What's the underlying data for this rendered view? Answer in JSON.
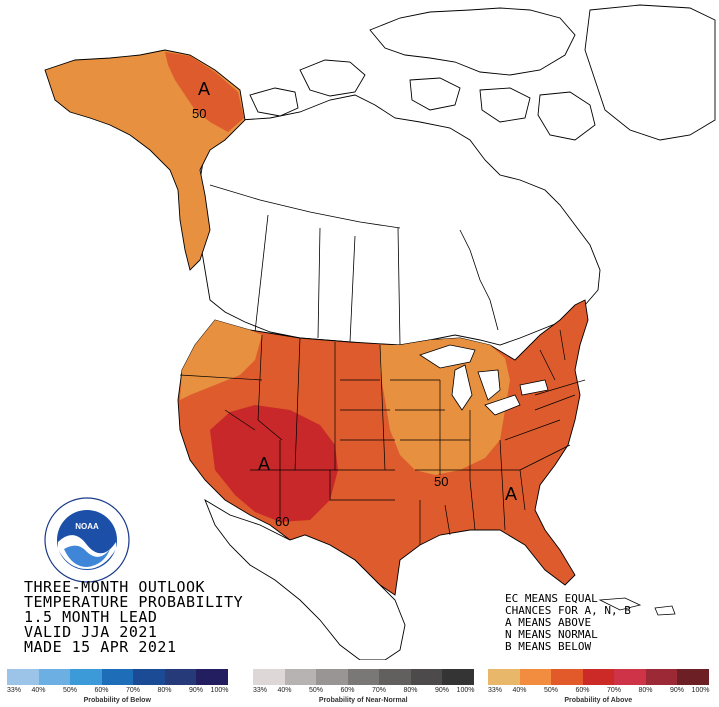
{
  "title_lines": [
    "THREE-MONTH OUTLOOK",
    "TEMPERATURE PROBABILITY",
    "1.5 MONTH LEAD",
    "VALID JJA 2021",
    "MADE 15 APR 2021"
  ],
  "legend_text": [
    "EC MEANS EQUAL",
    "CHANCES FOR A, N, B",
    "A MEANS ABOVE",
    "N MEANS NORMAL",
    "B MEANS BELOW"
  ],
  "map_labels": {
    "alaska_letter": "A",
    "alaska_contour": "50",
    "southwest_letter": "A",
    "southwest_contour": "60",
    "southeast_letter": "A",
    "southeast_contour": "50"
  },
  "colors": {
    "above_40": "#e69040",
    "above_50": "#dd5b2c",
    "above_60": "#c8282a",
    "ocean": "#ffffff",
    "outline": "#000000"
  },
  "scales": [
    {
      "title": "Probability of Below",
      "ticks": [
        "33%",
        "40%",
        "50%",
        "60%",
        "70%",
        "80%",
        "90%",
        "100%"
      ],
      "colors": [
        "#9cc4e8",
        "#6bafe3",
        "#3d9ad9",
        "#1d6db8",
        "#1c4b95",
        "#263978",
        "#231e60"
      ]
    },
    {
      "title": "Probability of Near-Normal",
      "ticks": [
        "33%",
        "40%",
        "50%",
        "60%",
        "70%",
        "80%",
        "90%",
        "100%"
      ],
      "colors": [
        "#ddd7d7",
        "#b8b3b3",
        "#999595",
        "#7a7777",
        "#625f5f",
        "#4c4a4a",
        "#353434"
      ]
    },
    {
      "title": "Probability of Above",
      "ticks": [
        "33%",
        "40%",
        "50%",
        "60%",
        "70%",
        "80%",
        "90%",
        "100%"
      ],
      "colors": [
        "#e8b76a",
        "#f28d40",
        "#e25a2a",
        "#cb2a26",
        "#cf3348",
        "#9c2a36",
        "#6c1f25"
      ]
    }
  ]
}
